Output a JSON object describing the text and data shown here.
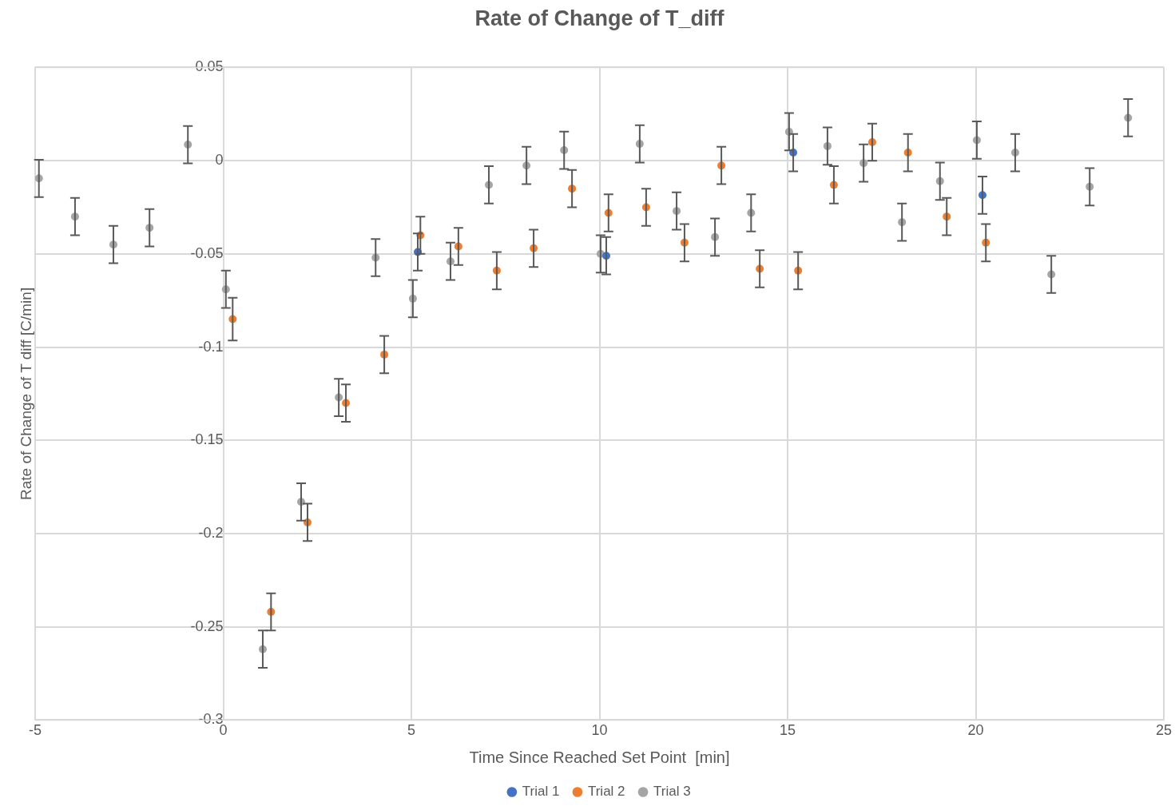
{
  "chart_data": {
    "type": "scatter",
    "title": "Rate of Change of T_diff",
    "xlabel": "Time Since Reached Set Point  [min]",
    "ylabel": "Rate of Change of T diff [C/min]",
    "xlim": [
      -5,
      25
    ],
    "xticks": [
      -5,
      0,
      5,
      10,
      15,
      20,
      25
    ],
    "ylim": [
      -0.3,
      0.05
    ],
    "yticks": [
      -0.3,
      -0.25,
      -0.2,
      -0.15,
      -0.1,
      -0.05,
      0,
      0.05
    ],
    "grid": true,
    "legend": "bottom",
    "marker": "circle",
    "series": [
      {
        "name": "Trial 1",
        "color": "#4472c4",
        "x": [
          5.17,
          10.18,
          15.15,
          20.18
        ],
        "values": [
          -0.049,
          -0.051,
          0.0043,
          -0.0185
        ],
        "errors": [
          0.01,
          0.01,
          0.01,
          0.01
        ]
      },
      {
        "name": "Trial 2",
        "color": "#ed7d31",
        "x": [
          0.25,
          1.27,
          2.24,
          3.26,
          4.28,
          5.24,
          6.25,
          7.27,
          8.25,
          9.27,
          10.24,
          11.24,
          12.26,
          13.24,
          14.26,
          15.28,
          16.23,
          17.25,
          18.2,
          19.23,
          20.27
        ],
        "values": [
          -0.085,
          -0.242,
          -0.194,
          -0.13,
          -0.104,
          -0.04,
          -0.046,
          -0.059,
          -0.047,
          -0.015,
          -0.028,
          -0.025,
          -0.044,
          -0.0026,
          -0.058,
          -0.059,
          -0.013,
          0.0099,
          0.0043,
          -0.03,
          -0.044
        ],
        "errors": [
          0.0115,
          0.01,
          0.01,
          0.01,
          0.01,
          0.01,
          0.01,
          0.01,
          0.01,
          0.01,
          0.01,
          0.01,
          0.01,
          0.01,
          0.01,
          0.01,
          0.01,
          0.01,
          0.01,
          0.01,
          0.01
        ]
      },
      {
        "name": "Trial 3",
        "color": "#a5a5a5",
        "x": [
          -4.9,
          -3.94,
          -2.92,
          -1.96,
          -0.94,
          0.07,
          1.05,
          2.07,
          3.07,
          4.05,
          5.04,
          6.04,
          7.06,
          8.06,
          9.06,
          10.03,
          11.07,
          12.05,
          13.07,
          14.03,
          15.04,
          16.06,
          17.02,
          18.04,
          19.05,
          20.03,
          21.05,
          22.01,
          23.03,
          24.05
        ],
        "values": [
          -0.0095,
          -0.03,
          -0.045,
          -0.036,
          0.0086,
          -0.069,
          -0.262,
          -0.183,
          -0.127,
          -0.052,
          -0.074,
          -0.054,
          -0.013,
          -0.0026,
          0.0056,
          -0.05,
          0.009,
          -0.027,
          -0.041,
          -0.028,
          0.0155,
          0.0078,
          -0.0013,
          -0.033,
          -0.011,
          0.011,
          0.0043,
          -0.061,
          -0.014,
          0.023
        ],
        "errors": [
          0.01,
          0.01,
          0.01,
          0.01,
          0.01,
          0.01,
          0.01,
          0.01,
          0.01,
          0.01,
          0.01,
          0.01,
          0.01,
          0.01,
          0.01,
          0.01,
          0.01,
          0.01,
          0.01,
          0.01,
          0.01,
          0.01,
          0.01,
          0.01,
          0.01,
          0.01,
          0.01,
          0.01,
          0.01,
          0.01
        ]
      }
    ]
  }
}
